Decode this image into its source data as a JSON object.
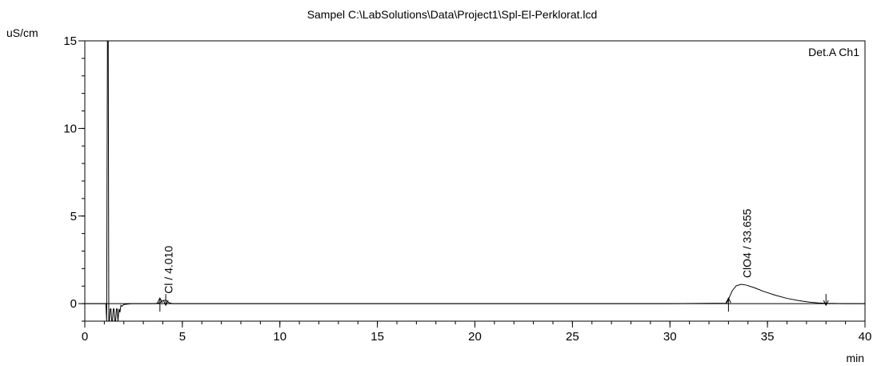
{
  "chart_data": {
    "type": "line",
    "title": "Sampel C:\\LabSolutions\\Data\\Project1\\Spl-El-Perklorat.lcd",
    "ylabel": "uS/cm",
    "xlabel": "min",
    "legend": "Det.A Ch1",
    "legend_position": "top-right",
    "xlim": [
      0,
      40
    ],
    "ylim": [
      -1,
      15
    ],
    "x_ticks": [
      0,
      5,
      10,
      15,
      20,
      25,
      30,
      35,
      40
    ],
    "y_ticks": [
      0,
      5,
      10,
      15
    ],
    "grid": false,
    "series": [
      {
        "x": [
          0,
          1.08,
          1.12,
          1.16,
          1.2,
          1.23,
          1.26,
          1.3,
          1.34,
          1.38,
          1.42,
          1.46,
          1.5,
          1.54,
          1.58,
          1.62,
          1.66,
          1.7,
          1.75,
          1.8,
          1.85,
          1.9,
          2.0,
          2.4,
          3.0,
          3.6,
          3.85,
          4.0,
          4.15,
          4.3,
          4.5,
          5.0,
          10,
          15,
          20,
          25,
          30,
          32.9,
          33.0,
          33.2,
          33.4,
          33.655,
          33.9,
          34.3,
          34.8,
          35.4,
          36.0,
          36.6,
          37.2,
          37.6,
          38.0,
          39.0,
          40.0
        ],
        "values": [
          0,
          0,
          -1,
          15,
          15,
          -1,
          -1,
          -0.3,
          -0.3,
          -1,
          -1,
          -0.3,
          -0.3,
          -1,
          -1,
          -0.3,
          -0.3,
          -1,
          -0.3,
          -0.5,
          -0.1,
          -0.15,
          -0.05,
          0,
          0,
          0,
          0.05,
          0.18,
          0.2,
          0.06,
          0,
          0,
          0,
          0,
          0,
          0,
          0,
          0.02,
          0.25,
          0.75,
          1.02,
          1.1,
          1.06,
          0.92,
          0.7,
          0.48,
          0.3,
          0.17,
          0.08,
          0.04,
          0.02,
          0,
          0
        ]
      }
    ],
    "peaks": [
      {
        "label": "Cl / 4.010",
        "x": 4.01,
        "y": 0.2
      },
      {
        "label": "ClO4 / 33.655",
        "x": 33.655,
        "y": 1.1
      }
    ],
    "integration_marks": [
      {
        "x": 3.85,
        "direction": "up"
      },
      {
        "x": 4.15,
        "direction": "down"
      },
      {
        "x": 33.0,
        "direction": "up"
      },
      {
        "x": 38.0,
        "direction": "down"
      }
    ]
  }
}
